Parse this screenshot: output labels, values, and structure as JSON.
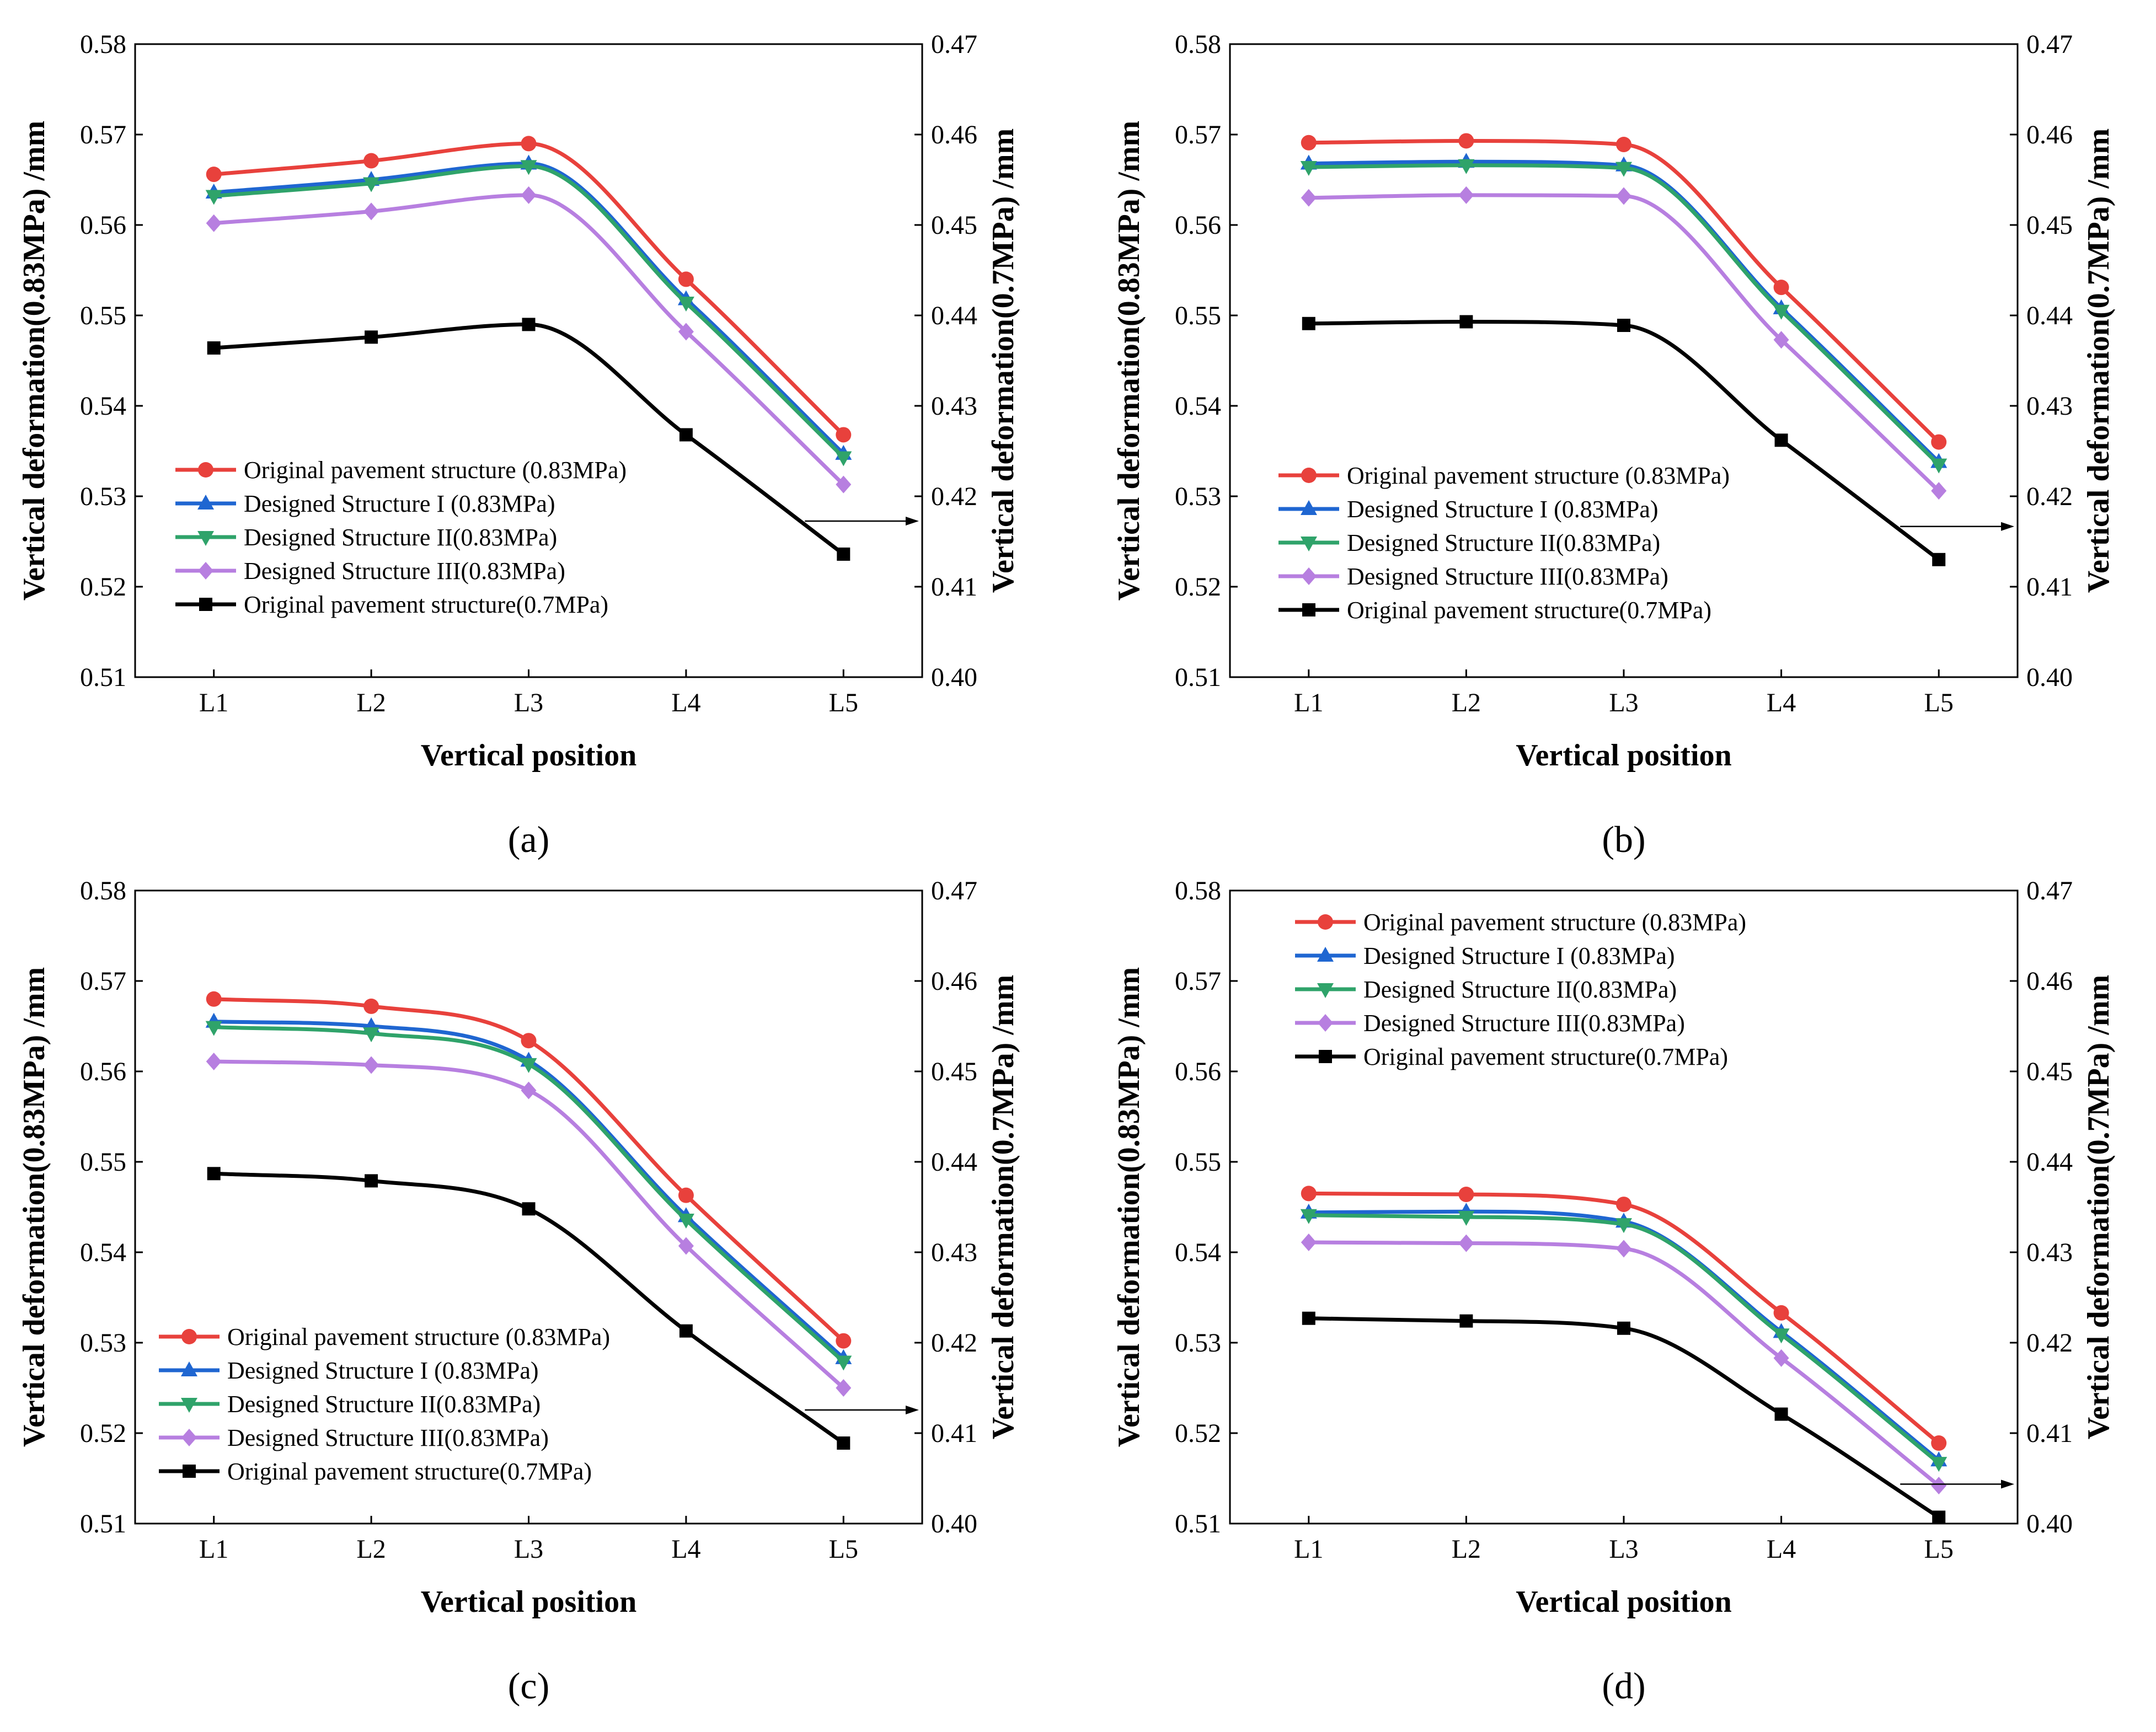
{
  "colors": {
    "red": "#e8413c",
    "blue": "#1f66d1",
    "green": "#2fa36a",
    "purple": "#b77fe0",
    "black": "#000000"
  },
  "chart_data": [
    {
      "id": "a",
      "type": "line",
      "caption": "(a)",
      "xlabel": "Vertical position",
      "ylabel": "Vertical deformation(0.83MPa) /mm",
      "y2label": "Vertical deformation(0.7MPa) /mm",
      "categories": [
        "L1",
        "L2",
        "L3",
        "L4",
        "L5"
      ],
      "ylim": [
        0.51,
        0.58
      ],
      "yticks": [
        "0.51",
        "0.52",
        "0.53",
        "0.54",
        "0.55",
        "0.56",
        "0.57",
        "0.58"
      ],
      "y2lim": [
        0.4,
        0.47
      ],
      "y2ticks": [
        "0.40",
        "0.41",
        "0.42",
        "0.43",
        "0.44",
        "0.45",
        "0.46",
        "0.47"
      ],
      "legend_position": "lower-left",
      "series": [
        {
          "name": "Original pavement structure (0.83MPa)",
          "color": "red",
          "marker": "circle",
          "axis": "left",
          "values": [
            0.5656,
            0.5671,
            0.569,
            0.554,
            0.5368
          ]
        },
        {
          "name": "Designed Structure I (0.83MPa)",
          "color": "blue",
          "marker": "triangle-up",
          "axis": "left",
          "values": [
            0.5636,
            0.565,
            0.5668,
            0.5518,
            0.5347
          ]
        },
        {
          "name": "Designed Structure II(0.83MPa)",
          "color": "green",
          "marker": "triangle-down",
          "axis": "left",
          "values": [
            0.5632,
            0.5646,
            0.5665,
            0.5514,
            0.5343
          ]
        },
        {
          "name": "Designed Structure III(0.83MPa)",
          "color": "purple",
          "marker": "diamond",
          "axis": "left",
          "values": [
            0.5602,
            0.5615,
            0.5633,
            0.5482,
            0.5313
          ]
        },
        {
          "name": "Original pavement structure(0.7MPa)",
          "color": "black",
          "marker": "square",
          "axis": "right",
          "values": [
            0.4364,
            0.4376,
            0.439,
            0.4268,
            0.4136
          ]
        }
      ]
    },
    {
      "id": "b",
      "type": "line",
      "caption": "(b)",
      "xlabel": "Vertical position",
      "ylabel": "Vertical deformation(0.83MPa) /mm",
      "y2label": "Vertical deformation(0.7MPa) /mm",
      "categories": [
        "L1",
        "L2",
        "L3",
        "L4",
        "L5"
      ],
      "ylim": [
        0.51,
        0.58
      ],
      "yticks": [
        "0.51",
        "0.52",
        "0.53",
        "0.54",
        "0.55",
        "0.56",
        "0.57",
        "0.58"
      ],
      "y2lim": [
        0.4,
        0.47
      ],
      "y2ticks": [
        "0.40",
        "0.41",
        "0.42",
        "0.43",
        "0.44",
        "0.45",
        "0.46",
        "0.47"
      ],
      "legend_position": "lower-left",
      "series": [
        {
          "name": "Original pavement structure (0.83MPa)",
          "color": "red",
          "marker": "circle",
          "axis": "left",
          "values": [
            0.5691,
            0.5693,
            0.5689,
            0.5531,
            0.536
          ]
        },
        {
          "name": "Designed Structure I (0.83MPa)",
          "color": "blue",
          "marker": "triangle-up",
          "axis": "left",
          "values": [
            0.5668,
            0.567,
            0.5666,
            0.5508,
            0.5338
          ]
        },
        {
          "name": "Designed Structure II(0.83MPa)",
          "color": "green",
          "marker": "triangle-down",
          "axis": "left",
          "values": [
            0.5664,
            0.5666,
            0.5663,
            0.5505,
            0.5335
          ]
        },
        {
          "name": "Designed Structure III(0.83MPa)",
          "color": "purple",
          "marker": "diamond",
          "axis": "left",
          "values": [
            0.563,
            0.5633,
            0.5632,
            0.5473,
            0.5306
          ]
        },
        {
          "name": "Original pavement structure(0.7MPa)",
          "color": "black",
          "marker": "square",
          "axis": "right",
          "values": [
            0.4391,
            0.4393,
            0.4389,
            0.4262,
            0.413
          ]
        }
      ]
    },
    {
      "id": "c",
      "type": "line",
      "caption": "(c)",
      "xlabel": "Vertical position",
      "ylabel": "Vertical deformation(0.83MPa) /mm",
      "y2label": "Vertical deformation(0.7MPa) /mm",
      "categories": [
        "L1",
        "L2",
        "L3",
        "L4",
        "L5"
      ],
      "ylim": [
        0.51,
        0.58
      ],
      "yticks": [
        "0.51",
        "0.52",
        "0.53",
        "0.54",
        "0.55",
        "0.56",
        "0.57",
        "0.58"
      ],
      "y2lim": [
        0.4,
        0.47
      ],
      "y2ticks": [
        "0.40",
        "0.41",
        "0.42",
        "0.43",
        "0.44",
        "0.45",
        "0.46",
        "0.47"
      ],
      "legend_position": "lower-left",
      "series": [
        {
          "name": "Original pavement structure (0.83MPa)",
          "color": "red",
          "marker": "circle",
          "axis": "left",
          "values": [
            0.568,
            0.5672,
            0.5634,
            0.5463,
            0.5302
          ]
        },
        {
          "name": "Designed Structure I (0.83MPa)",
          "color": "blue",
          "marker": "triangle-up",
          "axis": "left",
          "values": [
            0.5655,
            0.565,
            0.5612,
            0.544,
            0.5283
          ]
        },
        {
          "name": "Designed Structure II(0.83MPa)",
          "color": "green",
          "marker": "triangle-down",
          "axis": "left",
          "values": [
            0.5649,
            0.5642,
            0.5608,
            0.5436,
            0.5279
          ]
        },
        {
          "name": "Designed Structure III(0.83MPa)",
          "color": "purple",
          "marker": "diamond",
          "axis": "left",
          "values": [
            0.5611,
            0.5607,
            0.5579,
            0.5407,
            0.525
          ]
        },
        {
          "name": "Original pavement structure(0.7MPa)",
          "color": "black",
          "marker": "square",
          "axis": "right",
          "values": [
            0.4387,
            0.4379,
            0.4348,
            0.4213,
            0.4089
          ]
        }
      ]
    },
    {
      "id": "d",
      "type": "line",
      "caption": "(d)",
      "xlabel": "Vertical position",
      "ylabel": "Vertical deformation(0.83MPa) /mm",
      "y2label": "Vertical deformation(0.7MPa) /mm",
      "categories": [
        "L1",
        "L2",
        "L3",
        "L4",
        "L5"
      ],
      "ylim": [
        0.51,
        0.58
      ],
      "yticks": [
        "0.51",
        "0.52",
        "0.53",
        "0.54",
        "0.55",
        "0.56",
        "0.57",
        "0.58"
      ],
      "y2lim": [
        0.4,
        0.47
      ],
      "y2ticks": [
        "0.40",
        "0.41",
        "0.42",
        "0.43",
        "0.44",
        "0.45",
        "0.46",
        "0.47"
      ],
      "legend_position": "upper-left",
      "series": [
        {
          "name": "Original pavement structure (0.83MPa)",
          "color": "red",
          "marker": "circle",
          "axis": "left",
          "values": [
            0.5465,
            0.5464,
            0.5453,
            0.5333,
            0.5189
          ]
        },
        {
          "name": "Designed Structure I (0.83MPa)",
          "color": "blue",
          "marker": "triangle-up",
          "axis": "left",
          "values": [
            0.5444,
            0.5445,
            0.5434,
            0.5312,
            0.517
          ]
        },
        {
          "name": "Designed Structure II(0.83MPa)",
          "color": "green",
          "marker": "triangle-down",
          "axis": "left",
          "values": [
            0.5441,
            0.5439,
            0.5431,
            0.5309,
            0.5167
          ]
        },
        {
          "name": "Designed Structure III(0.83MPa)",
          "color": "purple",
          "marker": "diamond",
          "axis": "left",
          "values": [
            0.5411,
            0.541,
            0.5404,
            0.5283,
            0.5142
          ]
        },
        {
          "name": "Original pavement structure(0.7MPa)",
          "color": "black",
          "marker": "square",
          "axis": "right",
          "values": [
            0.4227,
            0.4224,
            0.4216,
            0.4121,
            0.4007
          ]
        }
      ]
    }
  ]
}
